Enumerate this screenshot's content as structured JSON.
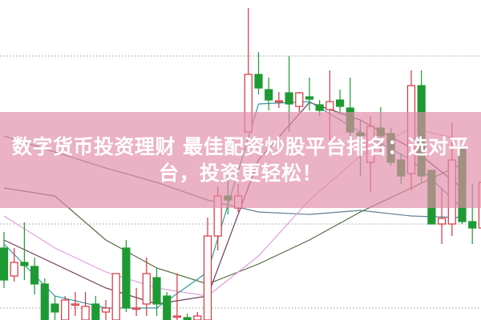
{
  "banner": {
    "title": "数字货币投资理财 最佳配资炒股平台排名：选对平台，投资更轻松！"
  },
  "chart_data": {
    "type": "candlestick",
    "axes_shown": false,
    "grid": "dotted horizontal",
    "grid_levels": [
      330,
      120,
      15
    ],
    "colors": {
      "up": "#d8323c",
      "down": "#1e9a34",
      "banner": "#e28ca8"
    },
    "candles_ohlc": [
      [
        90,
        50,
        110,
        40
      ],
      [
        55,
        72,
        90,
        48
      ],
      [
        72,
        68,
        122,
        50
      ],
      [
        67,
        45,
        78,
        32
      ],
      [
        45,
        0,
        52,
        0
      ],
      [
        20,
        10,
        30,
        0
      ],
      [
        0,
        25,
        30,
        0
      ],
      [
        20,
        20,
        35,
        5
      ],
      [
        0,
        17,
        35,
        0
      ],
      [
        20,
        0,
        30,
        0
      ],
      [
        10,
        15,
        25,
        0
      ],
      [
        0,
        58,
        58,
        0
      ],
      [
        90,
        15,
        100,
        10
      ],
      [
        15,
        15,
        40,
        5
      ],
      [
        20,
        58,
        78,
        5
      ],
      [
        53,
        20,
        65,
        5
      ],
      [
        30,
        0,
        35,
        0
      ],
      [
        5,
        5,
        58,
        0
      ],
      [
        3,
        0,
        8,
        0
      ],
      [
        0,
        5,
        10,
        0
      ],
      [
        0,
        105,
        128,
        0
      ],
      [
        105,
        155,
        167,
        87
      ],
      [
        155,
        150,
        180,
        132
      ],
      [
        140,
        155,
        170,
        135
      ],
      [
        235,
        307,
        390,
        235
      ],
      [
        307,
        290,
        335,
        282
      ],
      [
        288,
        275,
        303,
        262
      ],
      [
        274,
        274,
        285,
        265
      ],
      [
        284,
        270,
        330,
        235
      ],
      [
        267,
        284,
        285,
        260
      ],
      [
        279,
        276,
        303,
        262
      ],
      [
        269,
        262,
        275,
        255
      ],
      [
        263,
        273,
        312,
        225
      ],
      [
        275,
        267,
        288,
        257
      ],
      [
        265,
        235,
        303,
        220
      ],
      [
        234,
        230,
        250,
        180
      ],
      [
        197,
        242,
        255,
        160
      ],
      [
        240,
        230,
        266,
        210
      ],
      [
        233,
        197,
        240,
        193
      ],
      [
        200,
        180,
        208,
        170
      ],
      [
        183,
        293,
        312,
        162
      ],
      [
        293,
        180,
        312,
        172
      ],
      [
        187,
        120,
        187,
        120
      ],
      [
        120,
        127,
        165,
        95
      ],
      [
        120,
        200,
        247,
        105
      ],
      [
        215,
        123,
        215,
        120
      ],
      [
        123,
        115,
        170,
        95
      ],
      [
        115,
        172,
        175,
        82
      ]
    ],
    "moving_averages": {
      "sample_every_candles": 5,
      "series": [
        {
          "color": "#5f7f95",
          "values": [
            230,
            210,
            190,
            172,
            150,
            135,
            132,
            137,
            130,
            128
          ]
        },
        {
          "color": "#4f6b3c",
          "values": [
            165,
            155,
            100,
            65,
            45,
            70,
            100,
            135,
            165,
            195
          ]
        },
        {
          "color": "#e0a0dc",
          "values": [
            130,
            90,
            60,
            40,
            30,
            80,
            150,
            205,
            240,
            225
          ]
        },
        {
          "color": "#6a3d5c",
          "values": [
            100,
            70,
            40,
            20,
            30,
            200,
            272,
            250,
            215,
            165
          ]
        },
        {
          "color": "#2f9aa0",
          "values": [
            95,
            30,
            15,
            15,
            60,
            270,
            273,
            235,
            200,
            140
          ]
        }
      ]
    }
  }
}
